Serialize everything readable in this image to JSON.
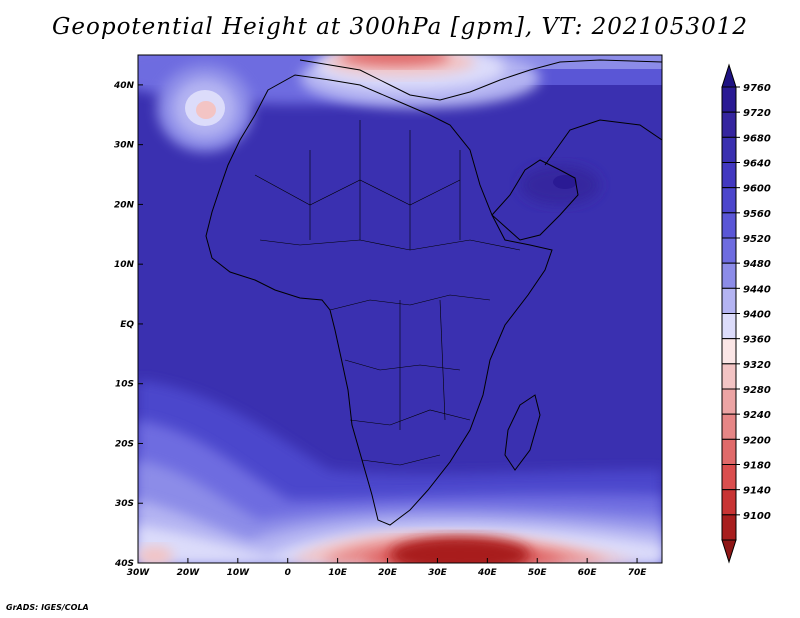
{
  "title": "Geopotential Height at 300hPa [gpm], VT: 2021053012",
  "credit": "GrADS: IGES/COLA",
  "map": {
    "lon_range": [
      -30,
      75
    ],
    "lat_range": [
      -40,
      45
    ],
    "lon_ticks": [
      {
        "value": -30,
        "label": "30W"
      },
      {
        "value": -20,
        "label": "20W"
      },
      {
        "value": -10,
        "label": "10W"
      },
      {
        "value": 0,
        "label": "0"
      },
      {
        "value": 10,
        "label": "10E"
      },
      {
        "value": 20,
        "label": "20E"
      },
      {
        "value": 30,
        "label": "30E"
      },
      {
        "value": 40,
        "label": "40E"
      },
      {
        "value": 50,
        "label": "50E"
      },
      {
        "value": 60,
        "label": "60E"
      },
      {
        "value": 70,
        "label": "70E"
      }
    ],
    "lat_ticks": [
      {
        "value": 40,
        "label": "40N"
      },
      {
        "value": 30,
        "label": "30N"
      },
      {
        "value": 20,
        "label": "20N"
      },
      {
        "value": 10,
        "label": "10N"
      },
      {
        "value": 0,
        "label": "EQ"
      },
      {
        "value": -10,
        "label": "10S"
      },
      {
        "value": -20,
        "label": "20S"
      },
      {
        "value": -30,
        "label": "30S"
      },
      {
        "value": -40,
        "label": "40S"
      }
    ]
  },
  "colorbar": {
    "levels": [
      {
        "value": "9760",
        "color": "#2a1a94"
      },
      {
        "value": "9720",
        "color": "#35259f"
      },
      {
        "value": "9680",
        "color": "#3a30b0"
      },
      {
        "value": "9640",
        "color": "#4238c0"
      },
      {
        "value": "9600",
        "color": "#4c46cc"
      },
      {
        "value": "9560",
        "color": "#5a56d6"
      },
      {
        "value": "9520",
        "color": "#6e6ce0"
      },
      {
        "value": "9480",
        "color": "#8c8ce8"
      },
      {
        "value": "9440",
        "color": "#b4b4f2"
      },
      {
        "value": "9400",
        "color": "#dcdcfa"
      },
      {
        "value": "9360",
        "color": "#fbe6e6"
      },
      {
        "value": "9320",
        "color": "#f3c4c4"
      },
      {
        "value": "9280",
        "color": "#eca4a4"
      },
      {
        "value": "9240",
        "color": "#e68686"
      },
      {
        "value": "9200",
        "color": "#e06a6a"
      },
      {
        "value": "9180",
        "color": "#da4e4e"
      },
      {
        "value": "9140",
        "color": "#c83434"
      },
      {
        "value": "9100",
        "color": "#a81e1e"
      }
    ],
    "top_color": "#1e1282",
    "bottom_color": "#8e1616"
  }
}
